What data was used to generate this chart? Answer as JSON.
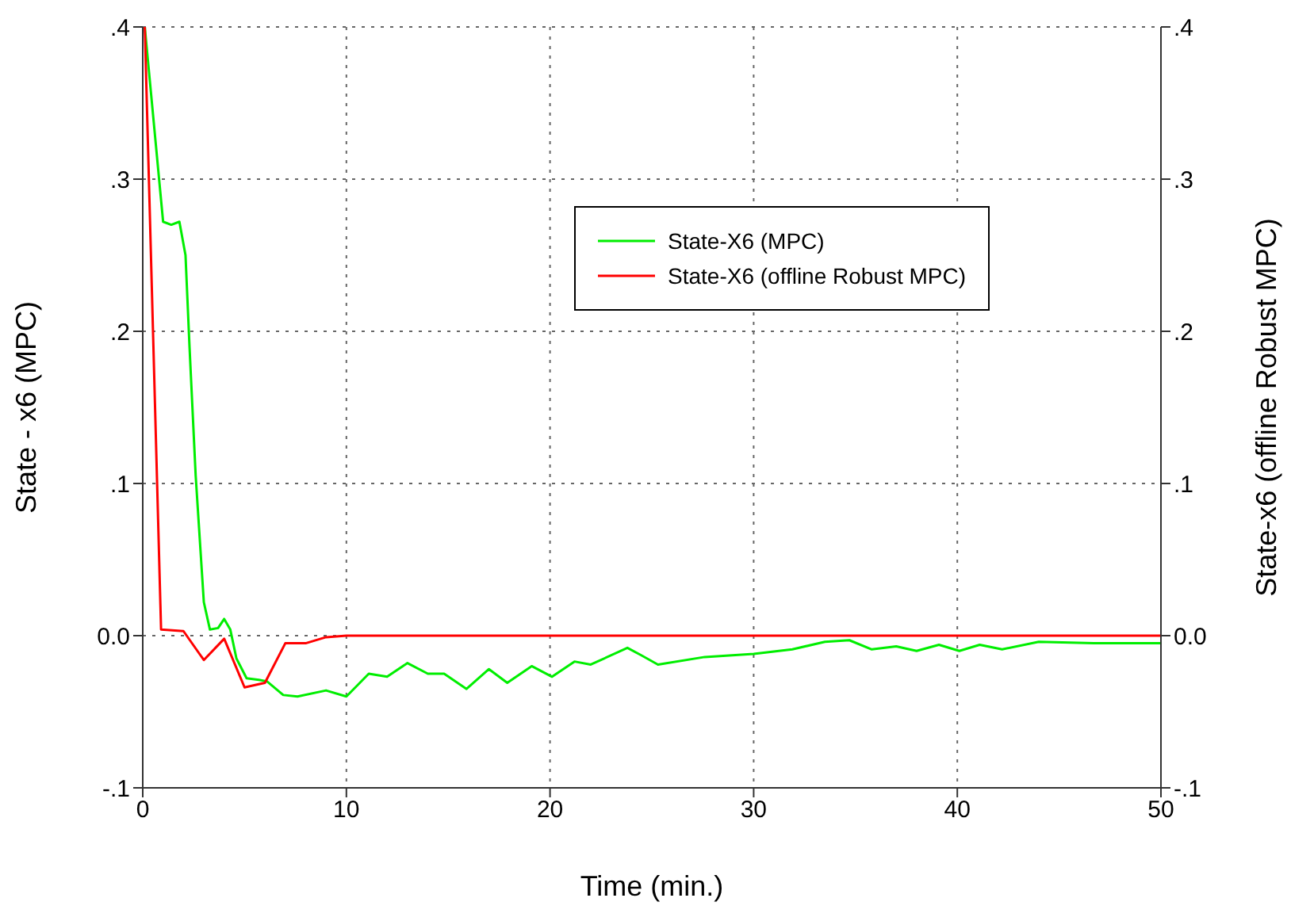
{
  "chart_data": {
    "type": "line",
    "xlabel": "Time (min.)",
    "ylabel": "State - x6 (MPC)",
    "y2label": "State-x6 (offline Robust MPC)",
    "xlim": [
      0,
      50
    ],
    "xticks": [
      0,
      10,
      20,
      30,
      40,
      50
    ],
    "ylim": [
      -0.1,
      0.4
    ],
    "yticks": [
      {
        "value": -0.1,
        "label": "-.1"
      },
      {
        "value": 0,
        "label": "0.0"
      },
      {
        "value": 0.1,
        "label": ".1"
      },
      {
        "value": 0.2,
        "label": ".2"
      },
      {
        "value": 0.3,
        "label": ".3"
      },
      {
        "value": 0.4,
        "label": ".4"
      }
    ],
    "y2lim": [
      -0.1,
      0.4
    ],
    "y2ticks": [
      {
        "value": -0.1,
        "label": "-.1"
      },
      {
        "value": 0,
        "label": "0.0"
      },
      {
        "value": 0.1,
        "label": ".1"
      },
      {
        "value": 0.2,
        "label": ".2"
      },
      {
        "value": 0.3,
        "label": ".3"
      },
      {
        "value": 0.4,
        "label": ".4"
      }
    ],
    "grid": true,
    "legend": "top right",
    "marker": "none",
    "line_style": "solid",
    "series": [
      {
        "name": "State-X6 (MPC)",
        "color": "#00ee00",
        "x": [
          0.1,
          1,
          1.4,
          1.8,
          2.1,
          2.3,
          2.6,
          3,
          3.3,
          3.7,
          4,
          4.3,
          4.6,
          5.1,
          5.7,
          6.1,
          6.9,
          7.6,
          9,
          10,
          11.1,
          12,
          13,
          14,
          14.8,
          15.9,
          17,
          17.9,
          19.1,
          20.1,
          21.2,
          22,
          23.8,
          24.5,
          25.3,
          27.6,
          30,
          31.9,
          33.5,
          34.7,
          35.8,
          37,
          38,
          39.1,
          40.1,
          41.1,
          42.2,
          44,
          46.7,
          50
        ],
        "values": [
          0.4,
          0.272,
          0.27,
          0.272,
          0.25,
          0.189,
          0.105,
          0.022,
          0.004,
          0.005,
          0.011,
          0.004,
          -0.015,
          -0.028,
          -0.029,
          -0.03,
          -0.039,
          -0.04,
          -0.036,
          -0.04,
          -0.025,
          -0.027,
          -0.018,
          -0.025,
          -0.025,
          -0.035,
          -0.022,
          -0.031,
          -0.02,
          -0.027,
          -0.017,
          -0.019,
          -0.008,
          -0.013,
          -0.019,
          -0.014,
          -0.012,
          -0.009,
          -0.004,
          -0.003,
          -0.009,
          -0.007,
          -0.01,
          -0.006,
          -0.01,
          -0.006,
          -0.009,
          -0.004,
          -0.005,
          -0.005
        ]
      },
      {
        "name": "State-X6 (offline Robust MPC)",
        "color": "#ff0000",
        "axis": "y2",
        "x": [
          0.1,
          0.9,
          2,
          3,
          4,
          5,
          6,
          7,
          8,
          9,
          10,
          20,
          30,
          40,
          50
        ],
        "values": [
          0.4,
          0.004,
          0.003,
          -0.016,
          -0.002,
          -0.034,
          -0.031,
          -0.005,
          -0.005,
          -0.001,
          0,
          0,
          0,
          0,
          0
        ]
      }
    ]
  }
}
